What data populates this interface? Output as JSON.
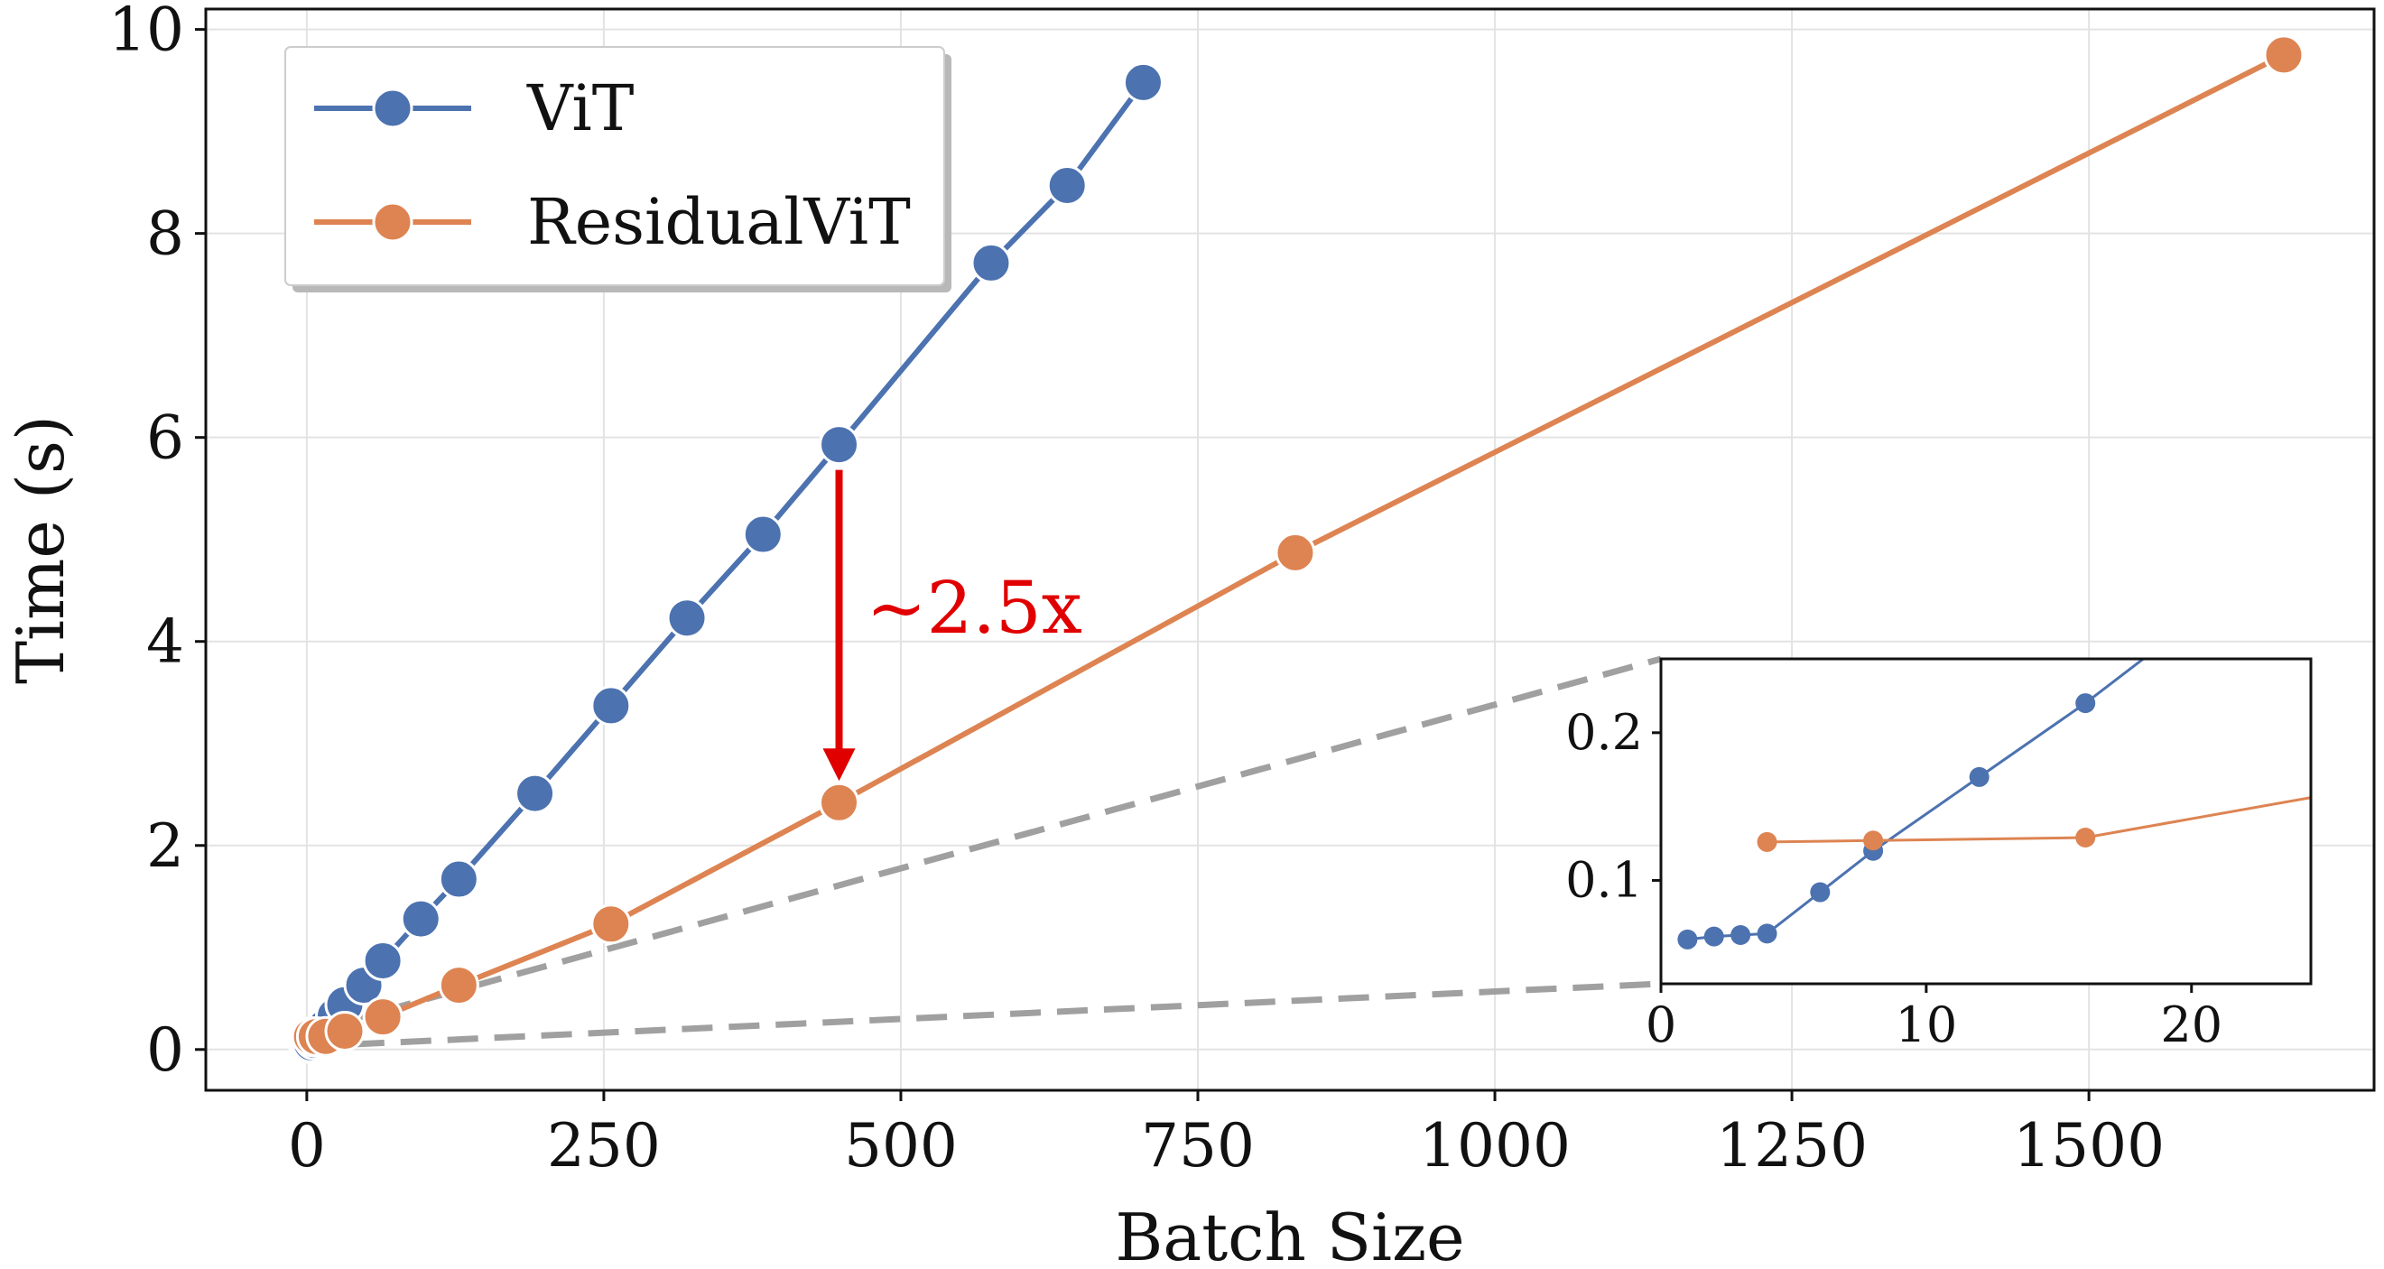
{
  "chart_data": {
    "type": "line",
    "xlabel": "Batch Size",
    "ylabel": "Time (s)",
    "xlim": [
      -85,
      1740
    ],
    "ylim": [
      -0.4,
      10.2
    ],
    "xticks": [
      0,
      250,
      500,
      750,
      1000,
      1250,
      1500
    ],
    "yticks": [
      0,
      2,
      4,
      6,
      8,
      10
    ],
    "grid": true,
    "legend_position": "top-left",
    "series": [
      {
        "name": "ViT",
        "color": "#4c72b0",
        "x": [
          1,
          2,
          3,
          4,
          6,
          8,
          12,
          16,
          24,
          32,
          48,
          64,
          96,
          128,
          192,
          256,
          320,
          384,
          448,
          576,
          640,
          704
        ],
        "y": [
          0.06,
          0.062,
          0.063,
          0.064,
          0.092,
          0.12,
          0.17,
          0.22,
          0.33,
          0.44,
          0.63,
          0.87,
          1.28,
          1.67,
          2.51,
          3.37,
          4.23,
          5.05,
          5.93,
          7.71,
          8.47,
          9.48
        ]
      },
      {
        "name": "ResidualViT",
        "color": "#dd8452",
        "x": [
          4,
          8,
          16,
          32,
          64,
          128,
          256,
          448,
          832,
          1664
        ],
        "y": [
          0.126,
          0.127,
          0.129,
          0.18,
          0.32,
          0.63,
          1.23,
          2.42,
          4.87,
          9.75
        ]
      }
    ],
    "annotation": {
      "text": "~2.5x",
      "color": "#e00000",
      "arrow_x": 448,
      "arrow_from_y": 5.93,
      "arrow_to_y": 2.42
    },
    "inset": {
      "xlim": [
        0,
        24.5
      ],
      "ylim": [
        0.03,
        0.25
      ],
      "xticks": [
        0,
        10,
        20
      ],
      "yticks": [
        0.1,
        0.2
      ],
      "source_region": {
        "x": [
          0,
          24.5
        ],
        "y": [
          0.03,
          0.25
        ]
      }
    }
  }
}
